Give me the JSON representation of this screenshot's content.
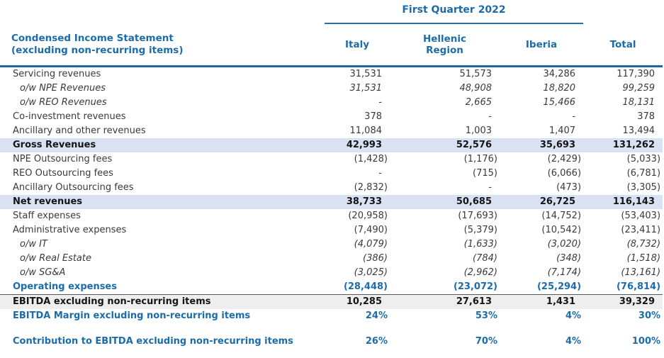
{
  "table": {
    "quarter_title": "First Quarter 2022",
    "row_header_line1": "Condensed Income Statement",
    "row_header_line2": "(excluding non-recurring items)",
    "columns": [
      "Italy",
      "Hellenic Region",
      "Iberia",
      "Total"
    ],
    "rows": [
      {
        "style": "normal",
        "label": "Servicing revenues",
        "values": [
          "31,531",
          "51,573",
          "34,286",
          "117,390"
        ]
      },
      {
        "style": "italic",
        "label": "o/w NPE Revenues",
        "values": [
          "31,531",
          "48,908",
          "18,820",
          "99,259"
        ]
      },
      {
        "style": "italic",
        "label": "o/w REO Revenues",
        "values": [
          "-",
          "2,665",
          "15,466",
          "18,131"
        ]
      },
      {
        "style": "normal",
        "label": "Co-investment revenues",
        "values": [
          "378",
          "-",
          "-",
          "378"
        ]
      },
      {
        "style": "normal",
        "label": "Ancillary and other revenues",
        "values": [
          "11,084",
          "1,003",
          "1,407",
          "13,494"
        ]
      },
      {
        "style": "band-blue",
        "label": "Gross Revenues",
        "values": [
          "42,993",
          "52,576",
          "35,693",
          "131,262"
        ]
      },
      {
        "style": "normal",
        "label": "NPE Outsourcing fees",
        "values": [
          "(1,428)",
          "(1,176)",
          "(2,429)",
          "(5,033)"
        ]
      },
      {
        "style": "normal",
        "label": "REO Outsourcing fees",
        "values": [
          "-",
          "(715)",
          "(6,066)",
          "(6,781)"
        ]
      },
      {
        "style": "normal",
        "label": "Ancillary Outsourcing fees",
        "values": [
          "(2,832)",
          "-",
          "(473)",
          "(3,305)"
        ]
      },
      {
        "style": "band-blue",
        "label": "Net revenues",
        "values": [
          "38,733",
          "50,685",
          "26,725",
          "116,143"
        ]
      },
      {
        "style": "normal",
        "label": "Staff expenses",
        "values": [
          "(20,958)",
          "(17,693)",
          "(14,752)",
          "(53,403)"
        ]
      },
      {
        "style": "normal",
        "label": "Administrative expenses",
        "values": [
          "(7,490)",
          "(5,379)",
          "(10,542)",
          "(23,411)"
        ]
      },
      {
        "style": "italic",
        "label": "o/w IT",
        "values": [
          "(4,079)",
          "(1,633)",
          "(3,020)",
          "(8,732)"
        ]
      },
      {
        "style": "italic",
        "label": "o/w Real Estate",
        "values": [
          "(386)",
          "(784)",
          "(348)",
          "(1,518)"
        ]
      },
      {
        "style": "italic",
        "label": "o/w SG&A",
        "values": [
          "(3,025)",
          "(2,962)",
          "(7,174)",
          "(13,161)"
        ]
      },
      {
        "style": "blue-bold",
        "label": "Operating expenses",
        "values": [
          "(28,448)",
          "(23,072)",
          "(25,294)",
          "(76,814)"
        ]
      },
      {
        "style": "band-gray",
        "label": "EBITDA excluding non-recurring items",
        "values": [
          "10,285",
          "27,613",
          "1,431",
          "39,329"
        ]
      },
      {
        "style": "blue-bold",
        "label": "EBITDA Margin excluding non-recurring items",
        "values": [
          "24%",
          "53%",
          "4%",
          "30%"
        ]
      },
      {
        "style": "spacer",
        "label": "",
        "values": []
      },
      {
        "style": "blue-bold",
        "label": "Contribution to EBITDA excluding non-recurring items",
        "values": [
          "26%",
          "70%",
          "4%",
          "100%"
        ]
      }
    ]
  },
  "colors": {
    "header_blue": "#1c6ca9",
    "thick_rule_blue": "#1f67a0",
    "quarter_underline_blue": "#2a6fa8",
    "band_blue_background": "#d9e2f2",
    "band_gray_background": "#eeeeee",
    "body_text": "#3a3a3a"
  }
}
